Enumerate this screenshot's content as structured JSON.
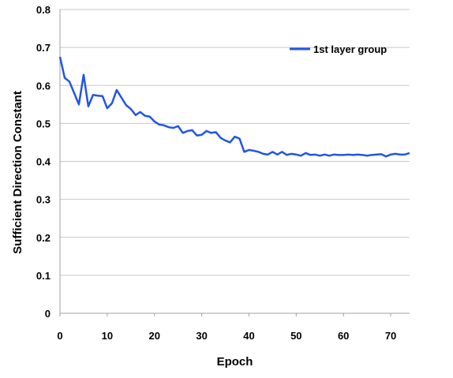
{
  "chart_data": {
    "type": "line",
    "title": "",
    "xlabel": "Epoch",
    "ylabel": "Sufficient Direction Constant",
    "xlim": [
      0,
      74
    ],
    "ylim": [
      0,
      0.8
    ],
    "xticks": [
      0,
      10,
      20,
      30,
      40,
      50,
      60,
      70
    ],
    "yticks": [
      0,
      0.1,
      0.2,
      0.3,
      0.4,
      0.5,
      0.6,
      0.7,
      0.8
    ],
    "xtick_labels": [
      "0",
      "10",
      "20",
      "30",
      "40",
      "50",
      "60",
      "70"
    ],
    "ytick_labels": [
      "0",
      "0.1",
      "0.2",
      "0.3",
      "0.4",
      "0.5",
      "0.6",
      "0.7",
      "0.8"
    ],
    "grid": "horizontal",
    "legend_position": "top-right",
    "series": [
      {
        "name": "1st layer group",
        "color": "#2255e6",
        "x": [
          0,
          1,
          2,
          3,
          4,
          5,
          6,
          7,
          8,
          9,
          10,
          11,
          12,
          13,
          14,
          15,
          16,
          17,
          18,
          19,
          20,
          21,
          22,
          23,
          24,
          25,
          26,
          27,
          28,
          29,
          30,
          31,
          32,
          33,
          34,
          35,
          36,
          37,
          38,
          39,
          40,
          41,
          42,
          43,
          44,
          45,
          46,
          47,
          48,
          49,
          50,
          51,
          52,
          53,
          54,
          55,
          56,
          57,
          58,
          59,
          60,
          61,
          62,
          63,
          64,
          65,
          66,
          67,
          68,
          69,
          70,
          71,
          72,
          73,
          74
        ],
        "values": [
          0.675,
          0.62,
          0.61,
          0.58,
          0.55,
          0.628,
          0.545,
          0.575,
          0.573,
          0.572,
          0.54,
          0.553,
          0.588,
          0.568,
          0.548,
          0.538,
          0.522,
          0.53,
          0.52,
          0.518,
          0.505,
          0.497,
          0.495,
          0.49,
          0.488,
          0.493,
          0.475,
          0.48,
          0.482,
          0.468,
          0.47,
          0.48,
          0.475,
          0.477,
          0.462,
          0.455,
          0.45,
          0.465,
          0.46,
          0.425,
          0.43,
          0.428,
          0.425,
          0.42,
          0.418,
          0.425,
          0.418,
          0.425,
          0.417,
          0.42,
          0.418,
          0.415,
          0.422,
          0.417,
          0.418,
          0.415,
          0.418,
          0.415,
          0.418,
          0.417,
          0.417,
          0.418,
          0.417,
          0.418,
          0.417,
          0.415,
          0.417,
          0.418,
          0.419,
          0.413,
          0.418,
          0.42,
          0.418,
          0.418,
          0.422
        ]
      }
    ]
  }
}
